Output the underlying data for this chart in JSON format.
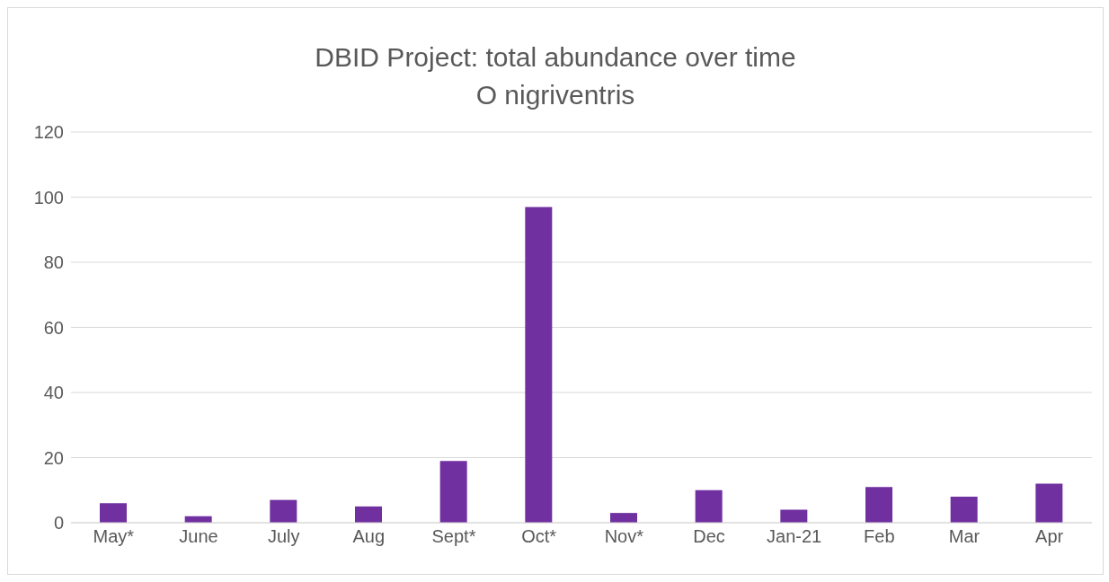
{
  "chart_data": {
    "type": "bar",
    "title": "DBID Project: total abundance over time",
    "subtitle": "O nigriventris",
    "categories": [
      "May*",
      "June",
      "July",
      "Aug",
      "Sept*",
      "Oct*",
      "Nov*",
      "Dec",
      "Jan-21",
      "Feb",
      "Mar",
      "Apr"
    ],
    "values": [
      6,
      2,
      7,
      5,
      19,
      97,
      3,
      10,
      4,
      11,
      8,
      12
    ],
    "color": "#7030a0",
    "ylim": [
      0,
      120
    ],
    "yticks": [
      0,
      20,
      40,
      60,
      80,
      100,
      120
    ],
    "grid": "y",
    "legend": false
  }
}
